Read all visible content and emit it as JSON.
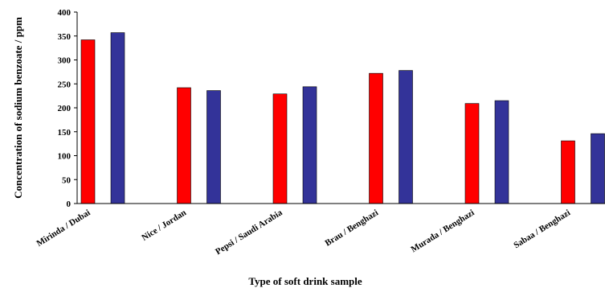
{
  "chart_data": {
    "type": "bar",
    "title": "",
    "xlabel": "Type of soft drink sample",
    "ylabel": "Concentration of  sodium benzoate / ppm",
    "ylim": [
      0,
      400
    ],
    "yticks": [
      0,
      50,
      100,
      150,
      200,
      250,
      300,
      350,
      400
    ],
    "categories": [
      "Mirinda / Dubai",
      "Nice / Jordan",
      "Pepsi / Saudi Arabia",
      "Brau / Benghazi",
      "Murada / Benghazi",
      "Sabaa / Benghazi"
    ],
    "series": [
      {
        "color": "#ff0000",
        "values": [
          342,
          242,
          229,
          272,
          209,
          131
        ]
      },
      {
        "color": "#333399",
        "values": [
          357,
          236,
          244,
          278,
          215,
          146
        ]
      }
    ],
    "grid": false,
    "legend": "none"
  }
}
